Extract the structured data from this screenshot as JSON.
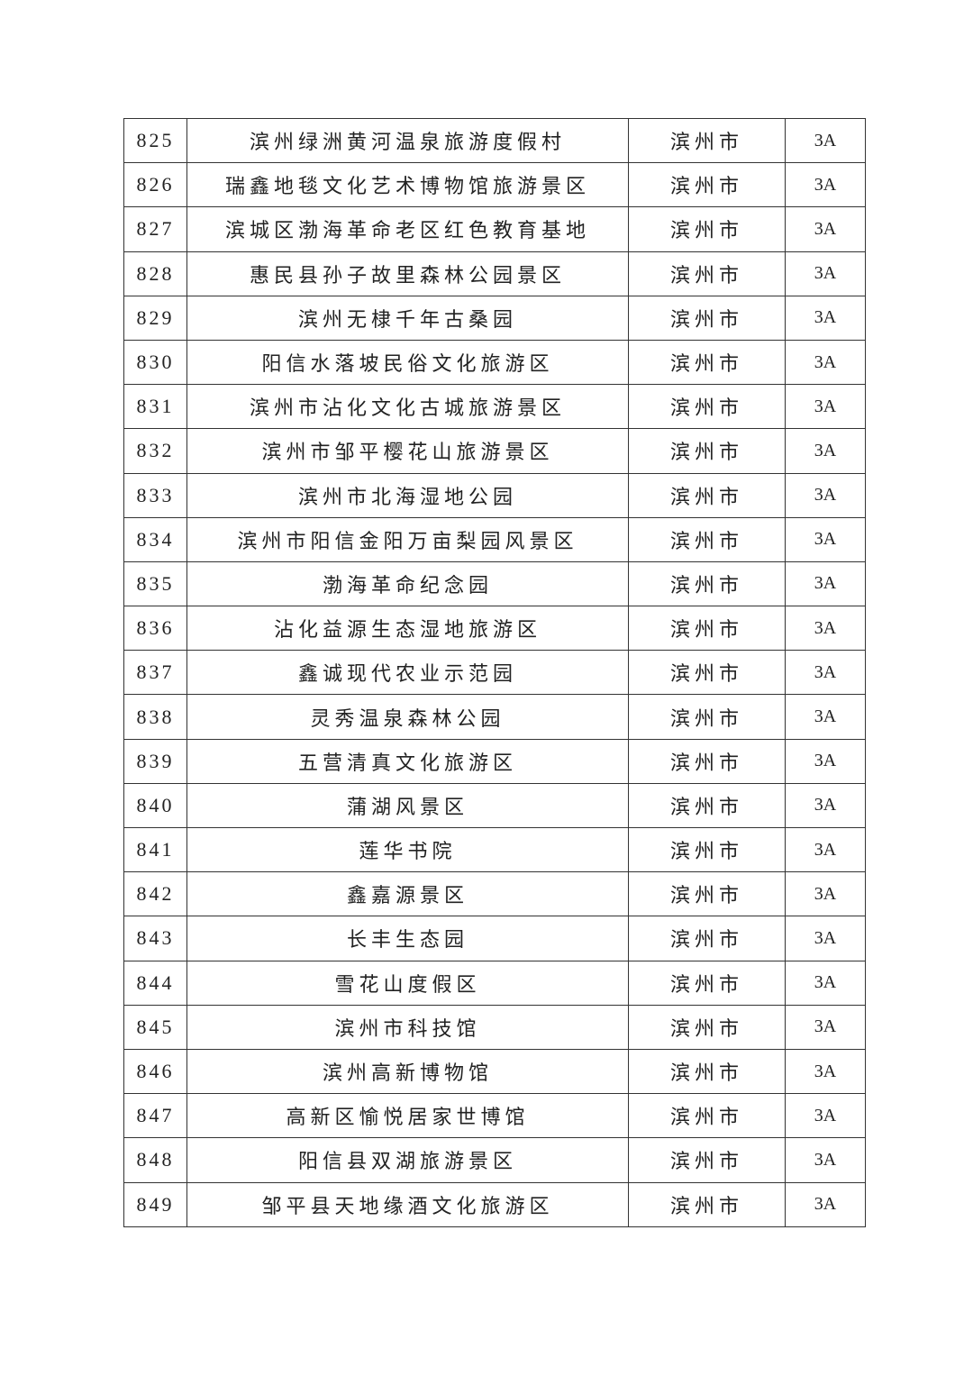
{
  "table": {
    "rows": [
      {
        "no": "825",
        "name": "滨州绿洲黄河温泉旅游度假村",
        "city": "滨州市",
        "grade": "3A"
      },
      {
        "no": "826",
        "name": "瑞鑫地毯文化艺术博物馆旅游景区",
        "city": "滨州市",
        "grade": "3A"
      },
      {
        "no": "827",
        "name": "滨城区渤海革命老区红色教育基地",
        "city": "滨州市",
        "grade": "3A"
      },
      {
        "no": "828",
        "name": "惠民县孙子故里森林公园景区",
        "city": "滨州市",
        "grade": "3A"
      },
      {
        "no": "829",
        "name": "滨州无棣千年古桑园",
        "city": "滨州市",
        "grade": "3A"
      },
      {
        "no": "830",
        "name": "阳信水落坡民俗文化旅游区",
        "city": "滨州市",
        "grade": "3A"
      },
      {
        "no": "831",
        "name": "滨州市沾化文化古城旅游景区",
        "city": "滨州市",
        "grade": "3A"
      },
      {
        "no": "832",
        "name": "滨州市邹平樱花山旅游景区",
        "city": "滨州市",
        "grade": "3A"
      },
      {
        "no": "833",
        "name": "滨州市北海湿地公园",
        "city": "滨州市",
        "grade": "3A"
      },
      {
        "no": "834",
        "name": "滨州市阳信金阳万亩梨园风景区",
        "city": "滨州市",
        "grade": "3A"
      },
      {
        "no": "835",
        "name": "渤海革命纪念园",
        "city": "滨州市",
        "grade": "3A"
      },
      {
        "no": "836",
        "name": "沾化益源生态湿地旅游区",
        "city": "滨州市",
        "grade": "3A"
      },
      {
        "no": "837",
        "name": "鑫诚现代农业示范园",
        "city": "滨州市",
        "grade": "3A"
      },
      {
        "no": "838",
        "name": "灵秀温泉森林公园",
        "city": "滨州市",
        "grade": "3A"
      },
      {
        "no": "839",
        "name": "五营清真文化旅游区",
        "city": "滨州市",
        "grade": "3A"
      },
      {
        "no": "840",
        "name": "蒲湖风景区",
        "city": "滨州市",
        "grade": "3A"
      },
      {
        "no": "841",
        "name": "莲华书院",
        "city": "滨州市",
        "grade": "3A"
      },
      {
        "no": "842",
        "name": "鑫嘉源景区",
        "city": "滨州市",
        "grade": "3A"
      },
      {
        "no": "843",
        "name": "长丰生态园",
        "city": "滨州市",
        "grade": "3A"
      },
      {
        "no": "844",
        "name": "雪花山度假区",
        "city": "滨州市",
        "grade": "3A"
      },
      {
        "no": "845",
        "name": "滨州市科技馆",
        "city": "滨州市",
        "grade": "3A"
      },
      {
        "no": "846",
        "name": "滨州高新博物馆",
        "city": "滨州市",
        "grade": "3A"
      },
      {
        "no": "847",
        "name": "高新区愉悦居家世博馆",
        "city": "滨州市",
        "grade": "3A"
      },
      {
        "no": "848",
        "name": "阳信县双湖旅游景区",
        "city": "滨州市",
        "grade": "3A"
      },
      {
        "no": "849",
        "name": "邹平县天地缘酒文化旅游区",
        "city": "滨州市",
        "grade": "3A"
      }
    ]
  }
}
